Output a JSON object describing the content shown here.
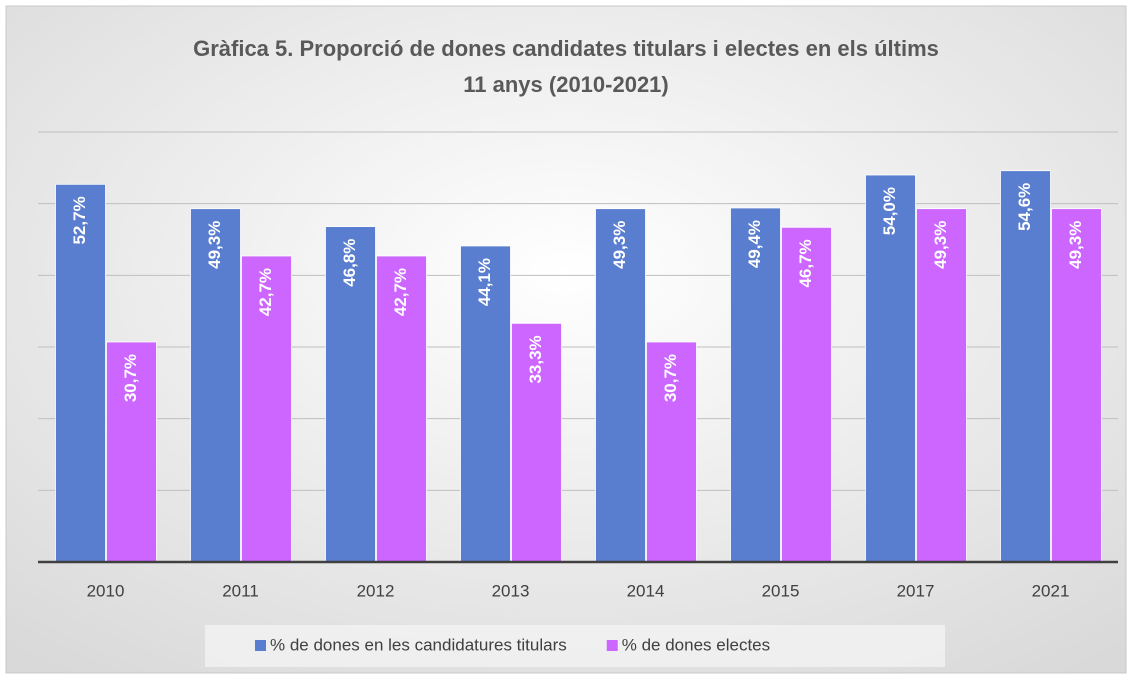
{
  "chart_data": {
    "type": "bar",
    "title": [
      "Gràfica 5. Proporció de dones candidates titulars i electes en els últims",
      "11 anys (2010-2021)"
    ],
    "categories": [
      "2010",
      "2011",
      "2012",
      "2013",
      "2014",
      "2015",
      "2017",
      "2021"
    ],
    "series": [
      {
        "name": "% de dones en les candidatures titulars",
        "color": "#5a7ecf",
        "values": [
          52.7,
          49.3,
          46.8,
          44.1,
          49.3,
          49.4,
          54.0,
          54.6
        ],
        "value_labels": [
          "52,7%",
          "49,3%",
          "46,8%",
          "44,1%",
          "49,3%",
          "49,4%",
          "54,0%",
          "54,6%"
        ]
      },
      {
        "name": "% de dones electes",
        "color": "#cc66ff",
        "values": [
          30.7,
          42.7,
          42.7,
          33.3,
          30.7,
          46.7,
          49.3,
          49.3
        ],
        "value_labels": [
          "30,7%",
          "42,7%",
          "42,7%",
          "33,3%",
          "30,7%",
          "46,7%",
          "49,3%",
          "49,3%"
        ]
      }
    ],
    "ylim": [
      0,
      60
    ],
    "yticks": [
      0,
      10,
      20,
      30,
      40,
      50,
      60
    ],
    "grid": true,
    "legend": "bottom"
  }
}
